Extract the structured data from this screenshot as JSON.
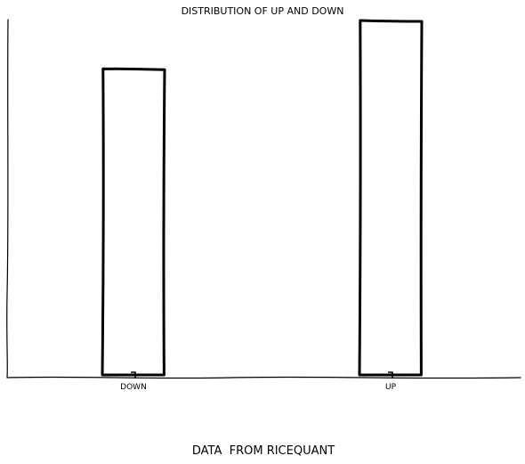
{
  "chart_data": {
    "type": "bar",
    "title": "DISTRIBUTION OF UP AND DOWN",
    "xlabel": "DATA  FROM RICEQUANT",
    "ylabel": "",
    "categories": [
      "DOWN",
      "UP"
    ],
    "values": [
      343,
      397
    ],
    "ylim": [
      0,
      410
    ],
    "grid": false,
    "style": "xkcd"
  }
}
